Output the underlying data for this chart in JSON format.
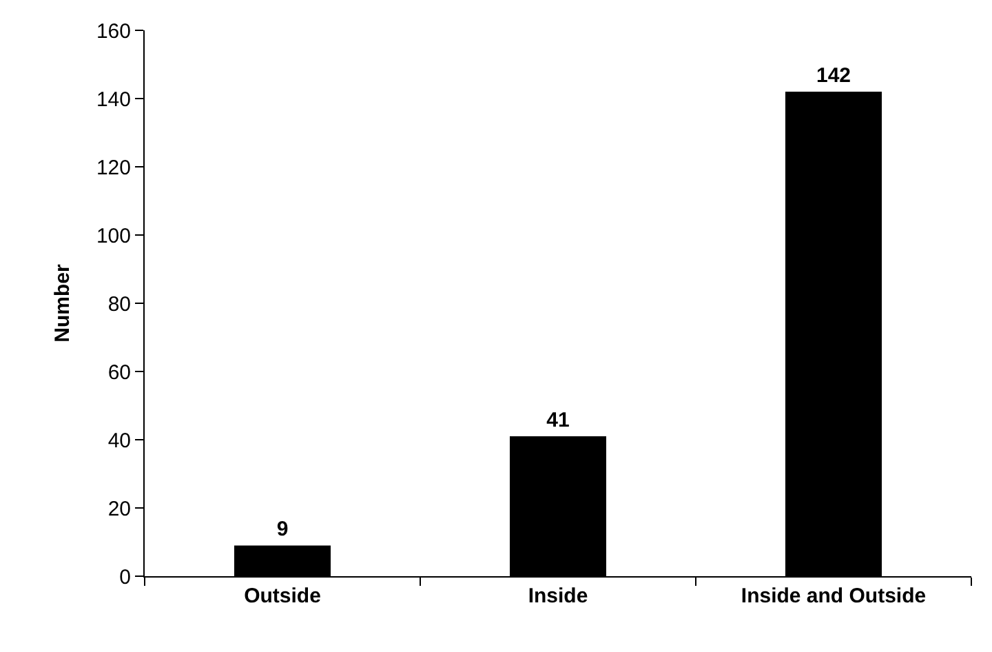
{
  "chart_data": {
    "type": "bar",
    "ylabel": "Number",
    "categories": [
      "Outside",
      "Inside",
      "Inside and Outside"
    ],
    "values": [
      9,
      41,
      142
    ],
    "color": "#000000",
    "ylim": [
      0,
      160
    ],
    "yticks": [
      0,
      20,
      40,
      60,
      80,
      100,
      120,
      140,
      160
    ],
    "data_labels": true
  }
}
